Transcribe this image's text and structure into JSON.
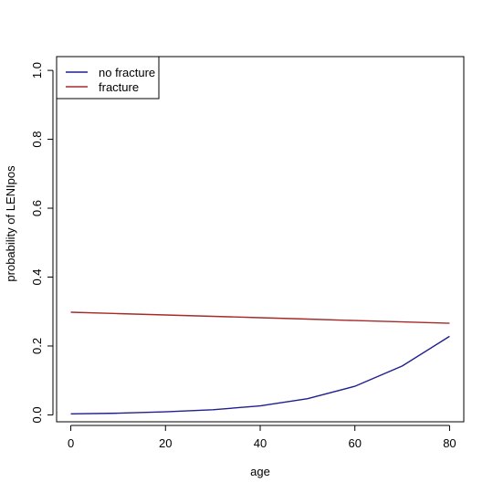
{
  "chart_data": {
    "type": "line",
    "title": "",
    "xlabel": "age",
    "ylabel": "probability of LENIpos",
    "xlim": [
      -3,
      83
    ],
    "ylim": [
      -0.02,
      1.04
    ],
    "xticks": [
      0,
      20,
      40,
      60,
      80
    ],
    "xtick_labels": [
      "0",
      "20",
      "40",
      "60",
      "80"
    ],
    "yticks": [
      0.0,
      0.2,
      0.4,
      0.6,
      0.8,
      1.0
    ],
    "ytick_labels": [
      "0.0",
      "0.2",
      "0.4",
      "0.6",
      "0.8",
      "1.0"
    ],
    "grid": false,
    "legend": {
      "position": "top-left",
      "box": true
    },
    "x": [
      0,
      10,
      20,
      30,
      40,
      50,
      60,
      70,
      80
    ],
    "series": [
      {
        "name": "no fracture",
        "color": "#1f1f8f",
        "values": [
          0.003,
          0.005,
          0.009,
          0.015,
          0.026,
          0.047,
          0.083,
          0.142,
          0.228
        ]
      },
      {
        "name": "fracture",
        "color": "#a52a2a",
        "values": [
          0.298,
          0.294,
          0.29,
          0.286,
          0.282,
          0.278,
          0.274,
          0.27,
          0.266
        ]
      }
    ]
  }
}
